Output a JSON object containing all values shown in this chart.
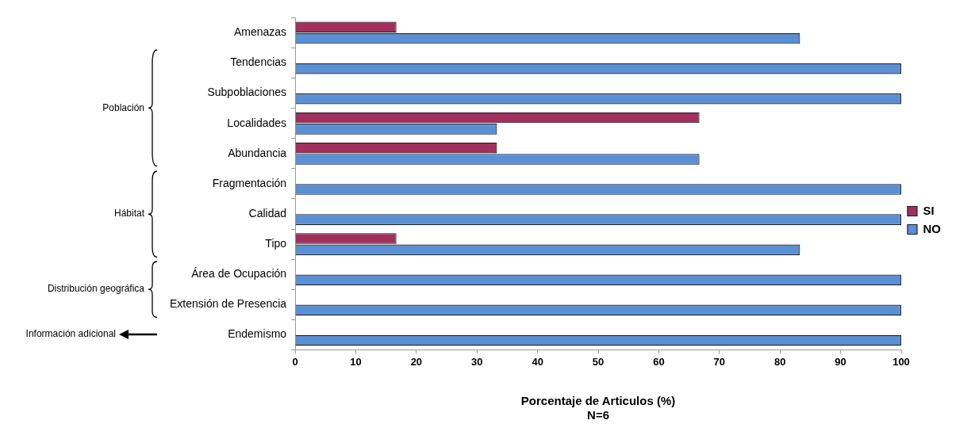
{
  "chart_data": {
    "type": "bar",
    "orientation": "horizontal",
    "xlabel": "Porcentaje de Articulos (%)\nN=6",
    "categories": [
      "Amenazas",
      "Tendencias",
      "Subpoblaciones",
      "Localidades",
      "Abundancia",
      "Fragmentación",
      "Calidad",
      "Tipo",
      "Área de Ocupación",
      "Extensión de Presencia",
      "Endemismo"
    ],
    "series": [
      {
        "name": "SI",
        "color": "#a3305c",
        "values": [
          16.7,
          0,
          0,
          66.7,
          33.3,
          0,
          0,
          16.7,
          0,
          0,
          0
        ]
      },
      {
        "name": "NO",
        "color": "#5b8fd4",
        "values": [
          83.3,
          100,
          100,
          33.3,
          66.7,
          100,
          100,
          83.3,
          100,
          100,
          100
        ]
      }
    ],
    "xlim": [
      0,
      100
    ],
    "xticks": [
      0,
      10,
      20,
      30,
      40,
      50,
      60,
      70,
      80,
      90,
      100
    ],
    "grid": false,
    "legend": "right",
    "annotations": [
      "Población",
      "Hábitat",
      "Distribución geográfica",
      "Información adicional"
    ]
  }
}
